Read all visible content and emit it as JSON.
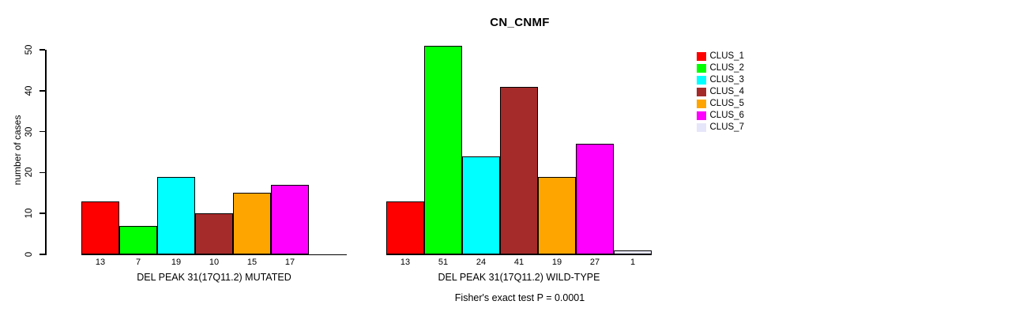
{
  "chart_data": {
    "type": "bar",
    "title": "CN_CNMF",
    "ylabel": "number of cases",
    "ylim": [
      0,
      50
    ],
    "yticks": [
      0,
      10,
      20,
      30,
      40,
      50
    ],
    "grid": false,
    "groups": [
      {
        "xlabel": "DEL PEAK 31(17Q11.2) MUTATED",
        "categories": [
          "CLUS_1",
          "CLUS_2",
          "CLUS_3",
          "CLUS_4",
          "CLUS_5",
          "CLUS_6",
          "CLUS_7"
        ],
        "values": [
          13,
          7,
          19,
          10,
          15,
          17,
          0
        ],
        "bar_labels": [
          "13",
          "7",
          "19",
          "10",
          "15",
          "17",
          ""
        ]
      },
      {
        "xlabel": "DEL PEAK 31(17Q11.2) WILD-TYPE",
        "categories": [
          "CLUS_1",
          "CLUS_2",
          "CLUS_3",
          "CLUS_4",
          "CLUS_5",
          "CLUS_6",
          "CLUS_7"
        ],
        "values": [
          13,
          51,
          24,
          41,
          19,
          27,
          1
        ],
        "bar_labels": [
          "13",
          "51",
          "24",
          "41",
          "19",
          "27",
          "1"
        ]
      }
    ],
    "legend": {
      "position": "right",
      "entries": [
        {
          "label": "CLUS_1",
          "color": "#FF0000"
        },
        {
          "label": "CLUS_2",
          "color": "#00FF00"
        },
        {
          "label": "CLUS_3",
          "color": "#00FFFF"
        },
        {
          "label": "CLUS_4",
          "color": "#A52A2A"
        },
        {
          "label": "CLUS_5",
          "color": "#FFA500"
        },
        {
          "label": "CLUS_6",
          "color": "#FF00FF"
        },
        {
          "label": "CLUS_7",
          "color": "#E6E6FA"
        }
      ]
    },
    "annotation": "Fisher's exact test P = 0.0001",
    "axis_color": "#000000",
    "bar_border_color": "#000000",
    "background_color": "#FFFFFF"
  }
}
